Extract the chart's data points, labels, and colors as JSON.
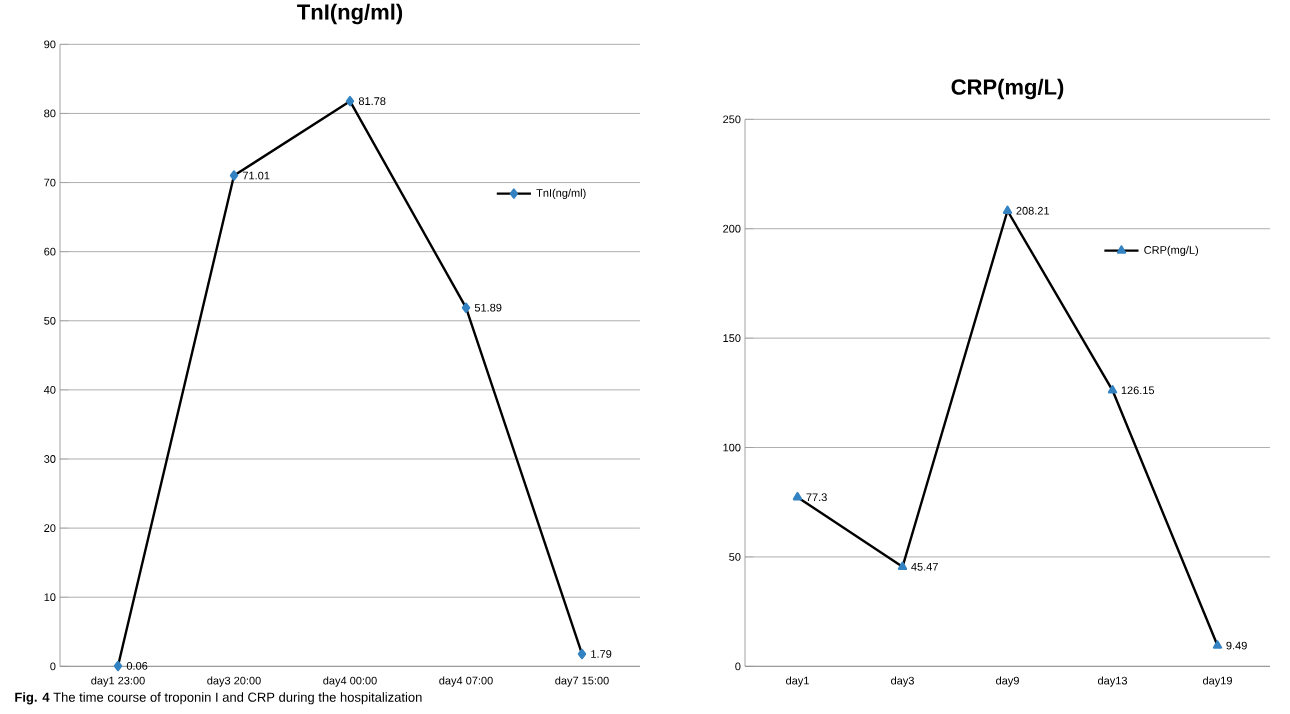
{
  "chart_data": [
    {
      "type": "line",
      "title": "TnI(ng/ml)",
      "categories": [
        "day1 23:00",
        "day3 20:00",
        "day4 00:00",
        "day4 07:00",
        "day7 15:00"
      ],
      "series": [
        {
          "name": "TnI(ng/ml)",
          "color": "#000000",
          "values": [
            0.06,
            71.01,
            81.78,
            51.89,
            1.79
          ]
        }
      ],
      "ylim": [
        0,
        90
      ],
      "yticks": [
        0,
        10,
        20,
        30,
        40,
        50,
        60,
        70,
        80,
        90
      ],
      "grid": "y",
      "legend": "right",
      "marker": "diamond",
      "data_labels": true,
      "annotations": [
        "**Fig. 4** The time course of troponin I and CRP during the hospitalization"
      ]
    },
    {
      "type": "line",
      "title": "CRP(mg/L)",
      "categories": [
        "day1",
        "day3",
        "day9",
        "day13",
        "day19"
      ],
      "series": [
        {
          "name": "CRP(mg/L)",
          "color": "#000000",
          "values": [
            77.3,
            45.47,
            208.21,
            126.15,
            9.49
          ]
        }
      ],
      "ylim": [
        0,
        250
      ],
      "yticks": [
        0,
        50,
        100,
        150,
        200,
        250
      ],
      "grid": "y",
      "legend": "right",
      "marker": "triangle",
      "data_labels": true
    }
  ]
}
